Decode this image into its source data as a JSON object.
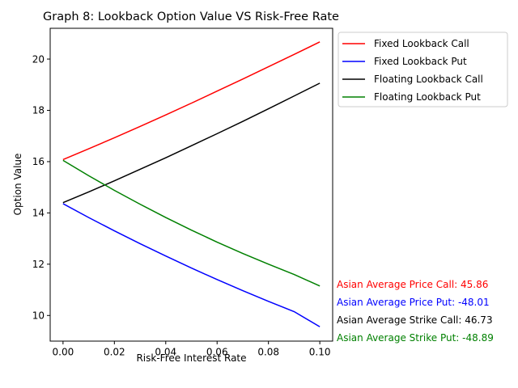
{
  "chart_data": {
    "type": "line",
    "title": "Graph 8: Lookback Option Value VS Risk-Free Rate",
    "xlabel": "Risk-Free Interest Rate",
    "ylabel": "Option Value",
    "xlim": [
      -0.005,
      0.105
    ],
    "ylim": [
      9.0,
      21.2
    ],
    "xticks": [
      0.0,
      0.02,
      0.04,
      0.06,
      0.08,
      0.1
    ],
    "xtick_labels": [
      "0.00",
      "0.02",
      "0.04",
      "0.06",
      "0.08",
      "0.10"
    ],
    "yticks": [
      10,
      12,
      14,
      16,
      18,
      20
    ],
    "ytick_labels": [
      "10",
      "12",
      "14",
      "16",
      "18",
      "20"
    ],
    "grid": false,
    "legend_position": "outside-top-right",
    "x": [
      0.0,
      0.01,
      0.02,
      0.03,
      0.04,
      0.05,
      0.06,
      0.07,
      0.08,
      0.09,
      0.1
    ],
    "series": [
      {
        "name": "Fixed Lookback Call",
        "color": "#ff0000",
        "values": [
          16.08,
          16.5,
          16.93,
          17.37,
          17.82,
          18.28,
          18.75,
          19.22,
          19.7,
          20.18,
          20.67
        ]
      },
      {
        "name": "Fixed Lookback Put",
        "color": "#0000ff",
        "values": [
          14.36,
          13.82,
          13.3,
          12.8,
          12.32,
          11.85,
          11.4,
          10.97,
          10.55,
          10.15,
          9.56
        ]
      },
      {
        "name": "Floating Lookback Call",
        "color": "#000000",
        "values": [
          14.4,
          14.82,
          15.25,
          15.7,
          16.15,
          16.62,
          17.09,
          17.57,
          18.06,
          18.56,
          19.06
        ]
      },
      {
        "name": "Floating Lookback Put",
        "color": "#008000",
        "values": [
          16.05,
          15.45,
          14.88,
          14.34,
          13.82,
          13.33,
          12.86,
          12.42,
          12.0,
          11.6,
          11.15
        ]
      }
    ],
    "annotations": [
      {
        "text": "Asian Average Price Call: 45.86",
        "color": "#ff0000"
      },
      {
        "text": "Asian Average Price Put: -48.01",
        "color": "#0000ff"
      },
      {
        "text": "Asian Average Strike Call: 46.73",
        "color": "#000000"
      },
      {
        "text": "Asian Average Strike Put: -48.89",
        "color": "#008000"
      }
    ]
  }
}
